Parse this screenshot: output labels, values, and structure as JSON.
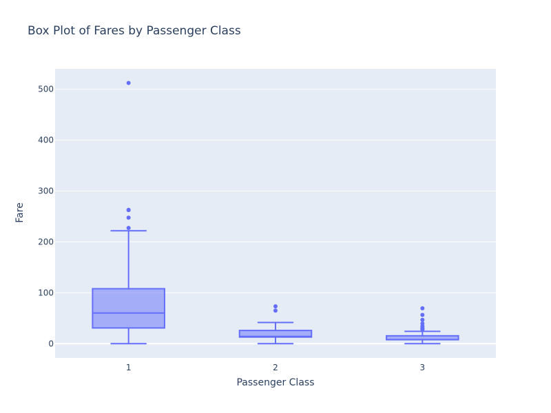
{
  "chart_data": {
    "type": "box",
    "title": "Box Plot of Fares by Passenger Class",
    "xlabel": "Passenger Class",
    "ylabel": "Fare",
    "categories": [
      "1",
      "2",
      "3"
    ],
    "ylim": [
      -28,
      540
    ],
    "yticks": [
      0,
      100,
      200,
      300,
      400,
      500
    ],
    "grid": true,
    "colors": {
      "box": "#636efa",
      "plot_bg": "#e5ecf6",
      "grid": "#ffffff",
      "text": "#2a3f5f"
    },
    "boxes": [
      {
        "category": "1",
        "min": 0,
        "q1": 30.9,
        "median": 60.3,
        "q3": 108,
        "max": 221.8,
        "outliers": [
          227.5,
          247.5,
          262.4,
          263,
          512.3
        ]
      },
      {
        "category": "2",
        "min": 0,
        "q1": 13,
        "median": 14.3,
        "q3": 26,
        "max": 41.6,
        "outliers": [
          65,
          73.5
        ]
      },
      {
        "category": "3",
        "min": 0,
        "q1": 7.8,
        "median": 8.05,
        "q3": 15.5,
        "max": 24.2,
        "outliers": [
          27.9,
          29.1,
          31.3,
          34.4,
          39.7,
          46.9,
          56.5,
          69.6
        ]
      }
    ]
  }
}
